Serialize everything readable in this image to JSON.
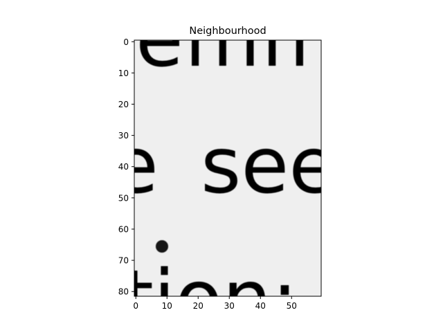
{
  "chart_data": {
    "type": "heatmap",
    "title": "Neighbourhood",
    "xlabel": "",
    "ylabel": "",
    "colormap": "gray",
    "image_shape": [
      82,
      60
    ],
    "xlim": [
      -0.5,
      59.5
    ],
    "ylim": [
      81.5,
      -0.5
    ],
    "x_ticks": [
      0,
      10,
      20,
      30,
      40,
      50
    ],
    "y_ticks": [
      0,
      10,
      20,
      30,
      40,
      50,
      60,
      70,
      80
    ],
    "grid": false,
    "content_description": "Grayscale crop of scanned serif text; fragments of letters on three lines: top line partially cut, middle line reading 'se', bottom line reading 'ion'"
  },
  "colors": {
    "background": "#ffffff",
    "paper": "#efefef",
    "ink": "#151515"
  }
}
